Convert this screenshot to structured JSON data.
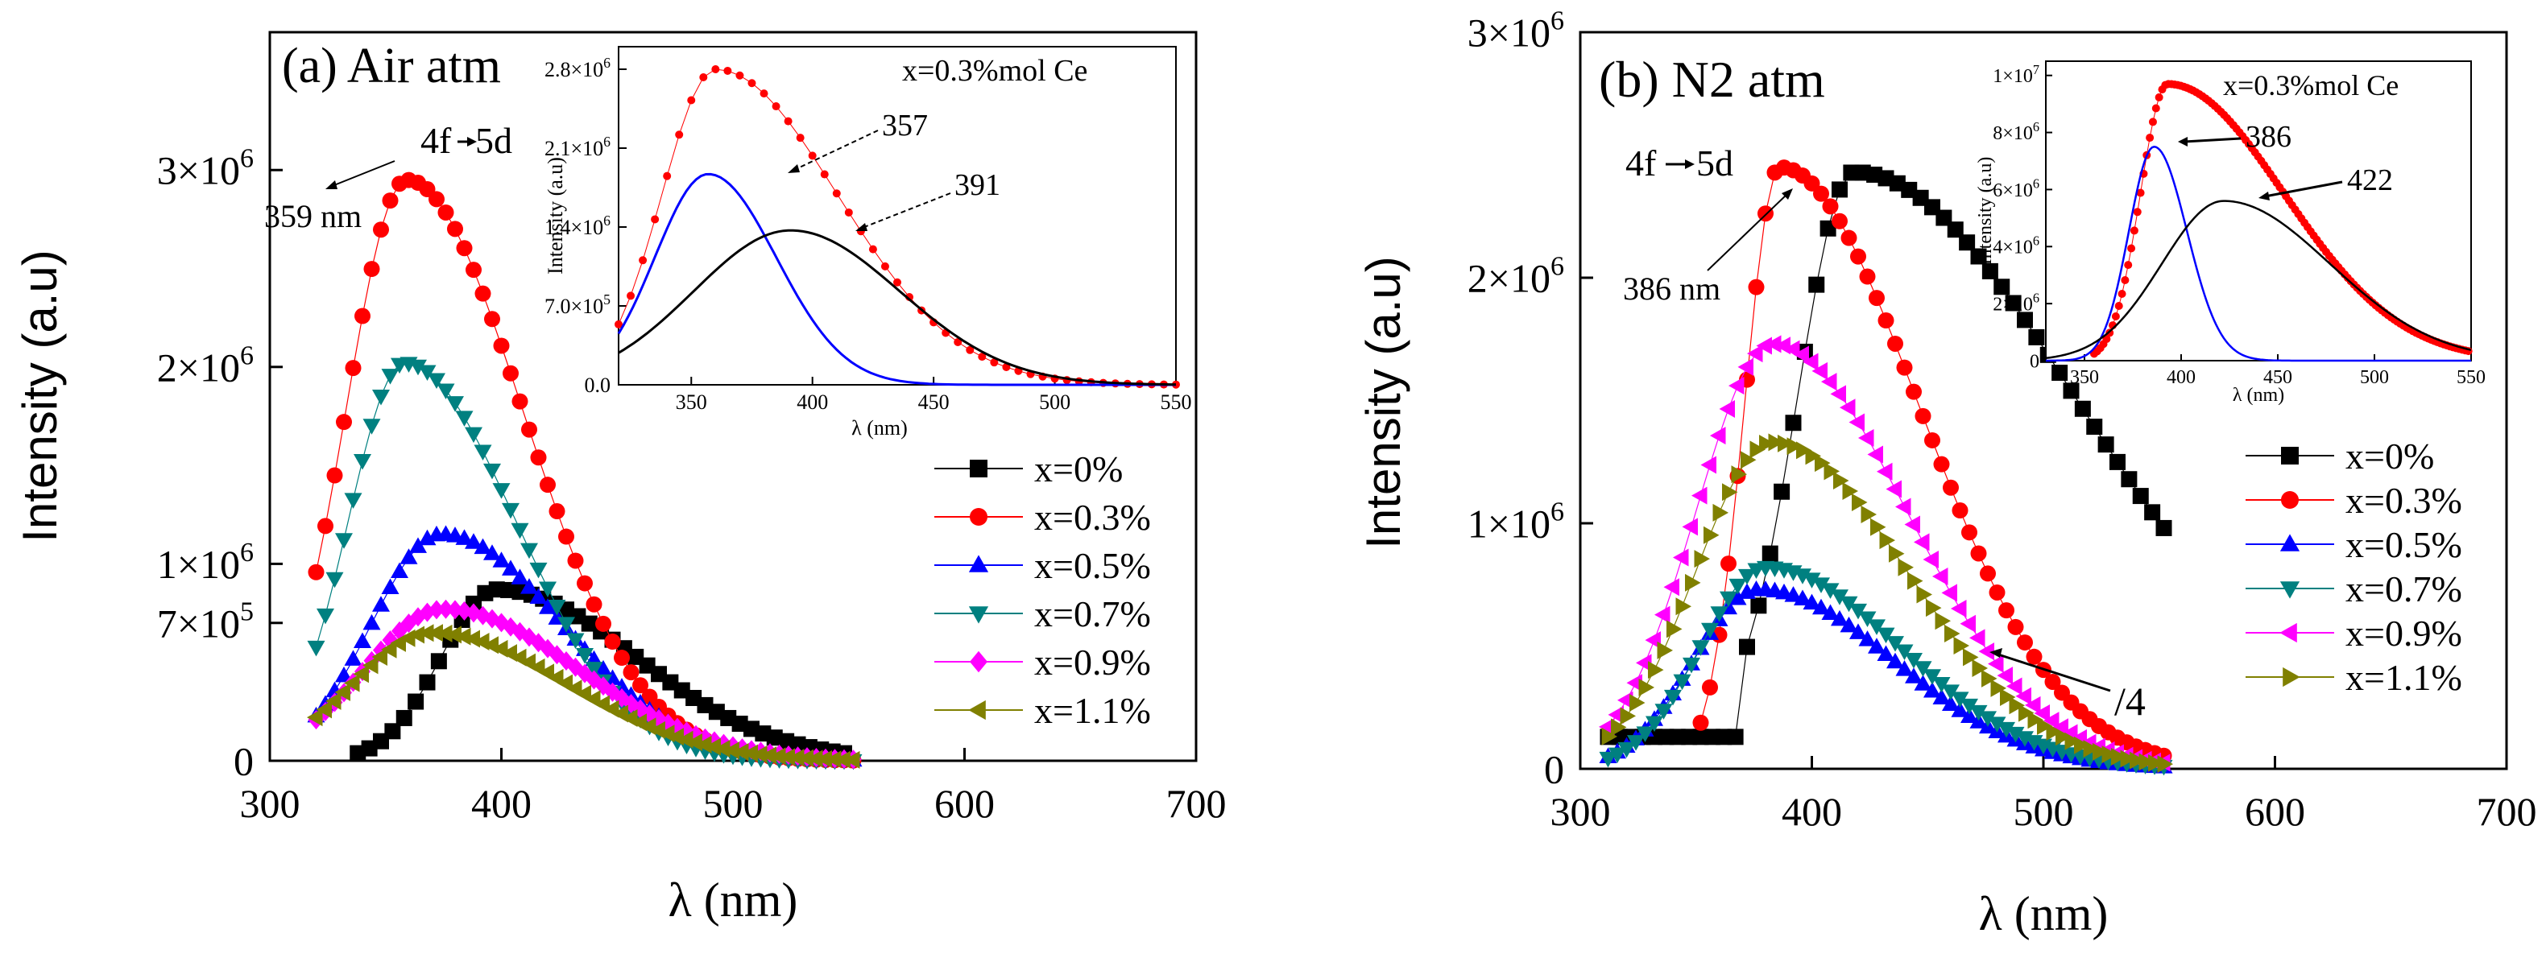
{
  "colors": {
    "x0": "#000000",
    "x03": "#ff0000",
    "x05": "#0000ff",
    "x07": "#008080",
    "x09": "#ff00ff",
    "x11": "#808000",
    "inset_blue": "#0000ff",
    "inset_black": "#000000",
    "inset_red": "#ff0000"
  },
  "chart_data": [
    {
      "id": "a",
      "type": "scatter",
      "title": "(a) Air atm",
      "xlabel": "λ (nm)",
      "ylabel": "Intensity (a.u)",
      "xlim": [
        300,
        700
      ],
      "ylim": [
        0,
        3700000
      ],
      "xticks": [
        300,
        400,
        500,
        600,
        700
      ],
      "xtick_labels": [
        "300",
        "400",
        "500",
        "600",
        "700"
      ],
      "yticks": [
        0,
        700000,
        1000000,
        2000000,
        3000000
      ],
      "ytick_labels": [
        "0",
        "7×10^5",
        "1×10^6",
        "2×10^6",
        "3×10^6"
      ],
      "legend_position": "right",
      "series": [
        {
          "name": "x=0%",
          "color_key": "x0",
          "marker": "square",
          "peak": 398,
          "amp": 870000,
          "wl": 24,
          "wr": 60,
          "onset": 338,
          "x_start": 338,
          "x_end": 552,
          "step": 5
        },
        {
          "name": "x=0.3%",
          "color_key": "x03",
          "marker": "circle",
          "peak": 359,
          "amp": 2950000,
          "wl": 26,
          "wr": 50,
          "x_start": 320,
          "x_end": 552,
          "step": 4
        },
        {
          "name": "x=0.5%",
          "color_key": "x05",
          "marker": "triangle-up",
          "peak": 374,
          "amp": 1150000,
          "wl": 30,
          "wr": 52,
          "x_start": 320,
          "x_end": 552,
          "step": 4
        },
        {
          "name": "x=0.7%",
          "color_key": "x07",
          "marker": "triangle-down",
          "peak": 358,
          "amp": 2020000,
          "wl": 24,
          "wr": 48,
          "x_start": 320,
          "x_end": 552,
          "step": 4
        },
        {
          "name": "x=0.9%",
          "color_key": "x09",
          "marker": "diamond",
          "peak": 375,
          "amp": 770000,
          "wl": 34,
          "wr": 58,
          "x_start": 320,
          "x_end": 552,
          "step": 4
        },
        {
          "name": "x=1.1%",
          "color_key": "x11",
          "marker": "triangle-left",
          "peak": 370,
          "amp": 650000,
          "wl": 34,
          "wr": 58,
          "x_start": 320,
          "x_end": 552,
          "step": 4
        }
      ],
      "annotations": [
        {
          "text": "4f",
          "x": 380,
          "y": 3200000
        },
        {
          "text": "5d",
          "x": 397,
          "y": 3200000
        },
        {
          "text": "359 nm",
          "x": 303,
          "y": 2740000
        }
      ],
      "inset": {
        "title": "x=0.3%mol Ce",
        "xlabel": "λ (nm)",
        "ylabel": "Intensity (a.u)",
        "xlim": [
          320,
          550
        ],
        "ylim": [
          0,
          3000000
        ],
        "xticks": [
          350,
          400,
          450,
          500,
          550
        ],
        "xtick_labels": [
          "350",
          "400",
          "450",
          "500",
          "550"
        ],
        "yticks": [
          0,
          700000,
          1400000,
          2100000,
          2800000
        ],
        "ytick_labels": [
          "0.0",
          "7.0×10^5",
          "1.4×10^6",
          "2.1×10^6",
          "2.8×10^6"
        ],
        "peak_labels": [
          "357",
          "391"
        ],
        "series": [
          {
            "name": "measured",
            "color_key": "inset_red",
            "marker": "circle",
            "peak": 360,
            "amp": 2800000,
            "wl": 22,
            "wr": 50,
            "x_start": 320,
            "x_end": 550,
            "step": 5
          },
          {
            "name": "357 nm band",
            "color_key": "inset_blue",
            "marker": "none",
            "peak": 357,
            "amp": 1870000,
            "wl": 22,
            "wr": 28,
            "x_start": 320,
            "x_end": 550,
            "step": 2
          },
          {
            "name": "391 nm band",
            "color_key": "inset_black",
            "marker": "none",
            "peak": 391,
            "amp": 1370000,
            "wl": 40,
            "wr": 45,
            "x_start": 320,
            "x_end": 550,
            "step": 2
          }
        ]
      }
    },
    {
      "id": "b",
      "type": "scatter",
      "title": "(b) N2 atm",
      "xlabel": "λ (nm)",
      "ylabel": "Intensity (a.u)",
      "xlim": [
        300,
        700
      ],
      "ylim": [
        0,
        3000000
      ],
      "xticks": [
        300,
        400,
        500,
        600,
        700
      ],
      "xtick_labels": [
        "300",
        "400",
        "500",
        "600",
        "700"
      ],
      "yticks": [
        0,
        1000000,
        2000000,
        3000000
      ],
      "ytick_labels": [
        "0",
        "1×10^6",
        "2×10^6",
        "3×10^6"
      ],
      "legend_position": "right",
      "series": [
        {
          "name": "x=0%",
          "color_key": "x0",
          "marker": "square",
          "peak": 418,
          "amp": 2300000,
          "wl": 24,
          "wr": 95,
          "onset": 372,
          "baseline": 130000,
          "x_start": 312,
          "x_end": 552,
          "step": 5
        },
        {
          "name": "x=0.3%",
          "color_key": "x03",
          "marker": "circle",
          "peak": 386,
          "amp": 2450000,
          "wl": 15,
          "wr": 60,
          "onset": 352,
          "x_start": 352,
          "x_end": 552,
          "step": 4
        },
        {
          "name": "x=0.5%",
          "color_key": "x05",
          "marker": "triangle-up",
          "peak": 377,
          "amp": 730000,
          "wl": 28,
          "wr": 58,
          "x_start": 312,
          "x_end": 552,
          "step": 4
        },
        {
          "name": "x=0.7%",
          "color_key": "x07",
          "marker": "triangle-down",
          "peak": 380,
          "amp": 820000,
          "wl": 28,
          "wr": 58,
          "x_start": 312,
          "x_end": 552,
          "step": 4
        },
        {
          "name": "x=0.9%",
          "color_key": "x09",
          "marker": "triangle-left",
          "peak": 383,
          "amp": 1730000,
          "wl": 33,
          "wr": 58,
          "x_start": 312,
          "x_end": 552,
          "step": 4
        },
        {
          "name": "x=1.1%",
          "color_key": "x11",
          "marker": "triangle-right",
          "peak": 383,
          "amp": 1330000,
          "wl": 33,
          "wr": 58,
          "x_start": 312,
          "x_end": 552,
          "step": 4
        }
      ],
      "annotations": [
        {
          "text": "4f",
          "x": 363,
          "y": 2440000
        },
        {
          "text": "5d",
          "x": 382,
          "y": 2440000
        },
        {
          "text": "386 nm",
          "x": 323,
          "y": 1980000
        },
        {
          "text": "/4",
          "x": 540,
          "y": 270000
        }
      ],
      "inset": {
        "title": "x=0.3%mol Ce",
        "xlabel": "λ (nm)",
        "ylabel": "Intensity (a.u)",
        "xlim": [
          330,
          550
        ],
        "ylim": [
          0,
          10500000
        ],
        "xticks": [
          350,
          400,
          450,
          500,
          550
        ],
        "xtick_labels": [
          "350",
          "400",
          "450",
          "500",
          "550"
        ],
        "yticks": [
          0,
          2000000,
          4000000,
          6000000,
          8000000,
          10000000
        ],
        "ytick_labels": [
          "0",
          "2×10^6",
          "4×10^6",
          "6×10^6",
          "8×10^6",
          "1×10^7"
        ],
        "peak_labels": [
          "386",
          "422"
        ],
        "series": [
          {
            "name": "measured",
            "color_key": "inset_red",
            "marker": "circle",
            "peak": 393,
            "amp": 9700000,
            "wl": 14,
            "wr": 60,
            "onset": 355,
            "x_start": 355,
            "x_end": 550,
            "step": 1.6
          },
          {
            "name": "386 nm band",
            "color_key": "inset_blue",
            "marker": "none",
            "peak": 386,
            "amp": 7500000,
            "wl": 13,
            "wr": 17,
            "x_start": 330,
            "x_end": 550,
            "step": 1
          },
          {
            "name": "422 nm band",
            "color_key": "inset_black",
            "marker": "none",
            "peak": 422,
            "amp": 5600000,
            "wl": 32,
            "wr": 55,
            "x_start": 330,
            "x_end": 550,
            "step": 1
          }
        ]
      }
    }
  ]
}
